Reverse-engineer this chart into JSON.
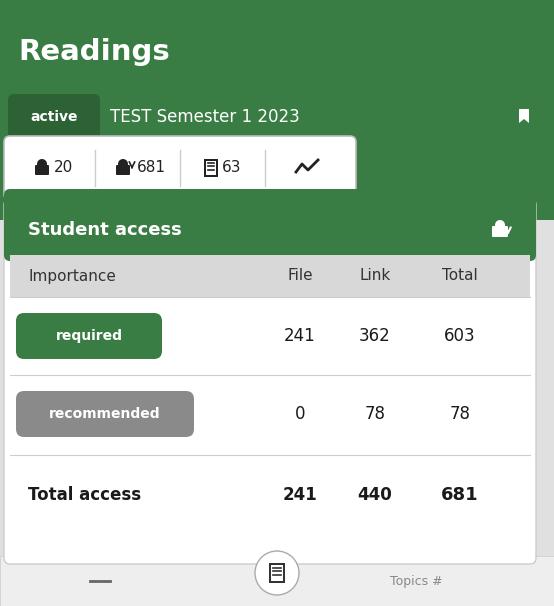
{
  "title": "Readings",
  "active_label": "active",
  "semester_label": "TEST Semester 1 2023",
  "tab_vals": [
    "20",
    "681",
    "63"
  ],
  "panel_header": "Student access",
  "col_headers": [
    "Importance",
    "File",
    "Link",
    "Total"
  ],
  "row1_label": "required",
  "row1_file": "241",
  "row1_link": "362",
  "row1_total": "603",
  "row2_label": "recommended",
  "row2_file": "0",
  "row2_link": "78",
  "row2_total": "78",
  "total_label": "Total access",
  "total_file": "241",
  "total_link": "440",
  "total_total": "681",
  "green": "#3a7d44",
  "green_dark": "#2d6235",
  "gray_pill": "#8a8a8a",
  "white": "#ffffff",
  "col_header_bg": "#d8d8d8",
  "row_divider": "#cccccc",
  "text_dark": "#1a1a1a",
  "tab_bar_bg": "#ffffff",
  "outer_bg": "#e0e0e0",
  "panel_shadow": "#dddddd",
  "bottom_bg": "#eeeeee"
}
